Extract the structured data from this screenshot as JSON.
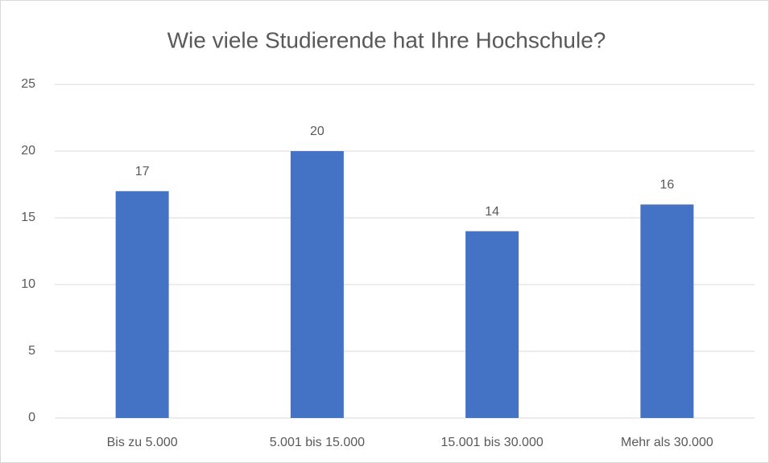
{
  "chart_data": {
    "type": "bar",
    "title": "Wie viele Studierende hat Ihre Hochschule?",
    "categories": [
      "Bis zu 5.000",
      "5.001 bis 15.000",
      "15.001 bis 30.000",
      "Mehr als 30.000"
    ],
    "values": [
      17,
      20,
      14,
      16
    ],
    "color": "#4472c4",
    "ylim": [
      0,
      25
    ],
    "yticks": [
      0,
      5,
      10,
      15,
      20,
      25
    ],
    "grid": true,
    "data_labels": true
  }
}
